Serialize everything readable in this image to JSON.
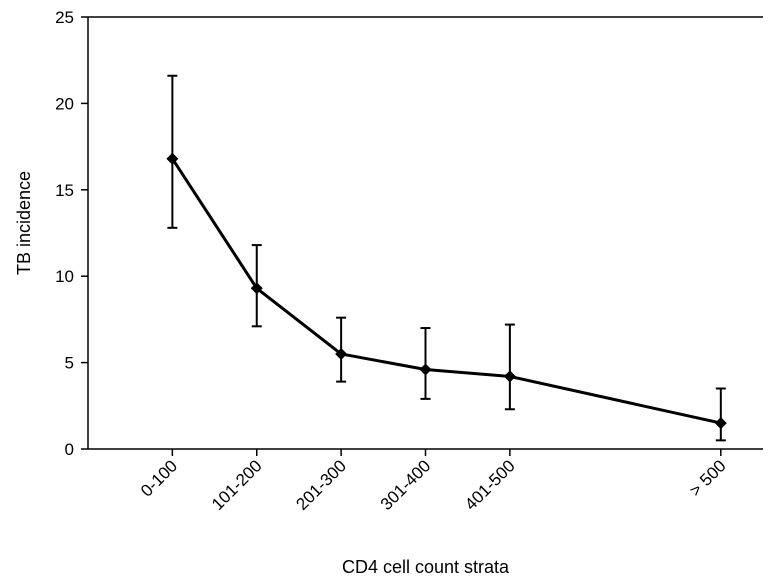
{
  "chart_data": {
    "type": "line",
    "xlabel": "CD4 cell count strata",
    "ylabel": "TB incidence",
    "ylim": [
      0,
      25
    ],
    "yticks": [
      0,
      5,
      10,
      15,
      20,
      25
    ],
    "grid": false,
    "x_scale": "categorical, unevenly spaced",
    "categories": [
      "0-100",
      "101-200",
      "201-300",
      "301-400",
      "401-500",
      "> 500"
    ],
    "x_positions": [
      1,
      2,
      3,
      4,
      5,
      7.5
    ],
    "xlim": [
      0,
      8
    ],
    "series": [
      {
        "values": [
          16.8,
          9.3,
          5.5,
          4.6,
          4.2,
          1.5
        ],
        "error_lower": [
          12.8,
          7.1,
          3.9,
          2.9,
          2.3,
          0.5
        ],
        "error_upper": [
          21.6,
          11.8,
          7.6,
          7.0,
          7.2,
          3.5
        ]
      }
    ],
    "marker": "diamond",
    "color": "#000000"
  }
}
